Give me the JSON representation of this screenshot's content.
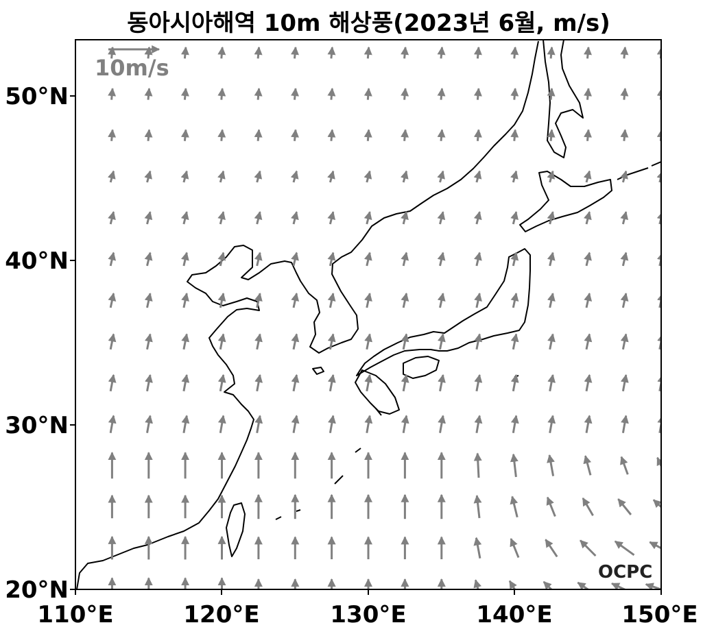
{
  "title": "동아시아해역 10m 해상풍(2023년 6월, m/s)",
  "reference_vector": {
    "label": "10m/s",
    "magnitude": 10,
    "units": "m/s"
  },
  "logo": "OCPC",
  "colors": {
    "arrow": "#808080",
    "coast": "#000000",
    "frame": "#000000"
  },
  "chart_data": {
    "type": "vector-field",
    "projection": "plate-carree",
    "lon_range": [
      110,
      150
    ],
    "lat_range": [
      20,
      53.3
    ],
    "x_ticks": [
      "110°E",
      "120°E",
      "130°E",
      "140°E",
      "150°E"
    ],
    "y_ticks": [
      "20°N",
      "30°N",
      "40°N",
      "50°N"
    ],
    "grid": false,
    "vector_units": "m/s",
    "grid_spacing_deg": 2.5,
    "lons": [
      112.5,
      115,
      117.5,
      120,
      122.5,
      125,
      127.5,
      130,
      132.5,
      135,
      137.5,
      140,
      142.5,
      145,
      147.5,
      150
    ],
    "lats": [
      20,
      22.5,
      25,
      27.5,
      30,
      32.5,
      35,
      37.5,
      40,
      42.5,
      45,
      47.5,
      50,
      52.5
    ]
  }
}
